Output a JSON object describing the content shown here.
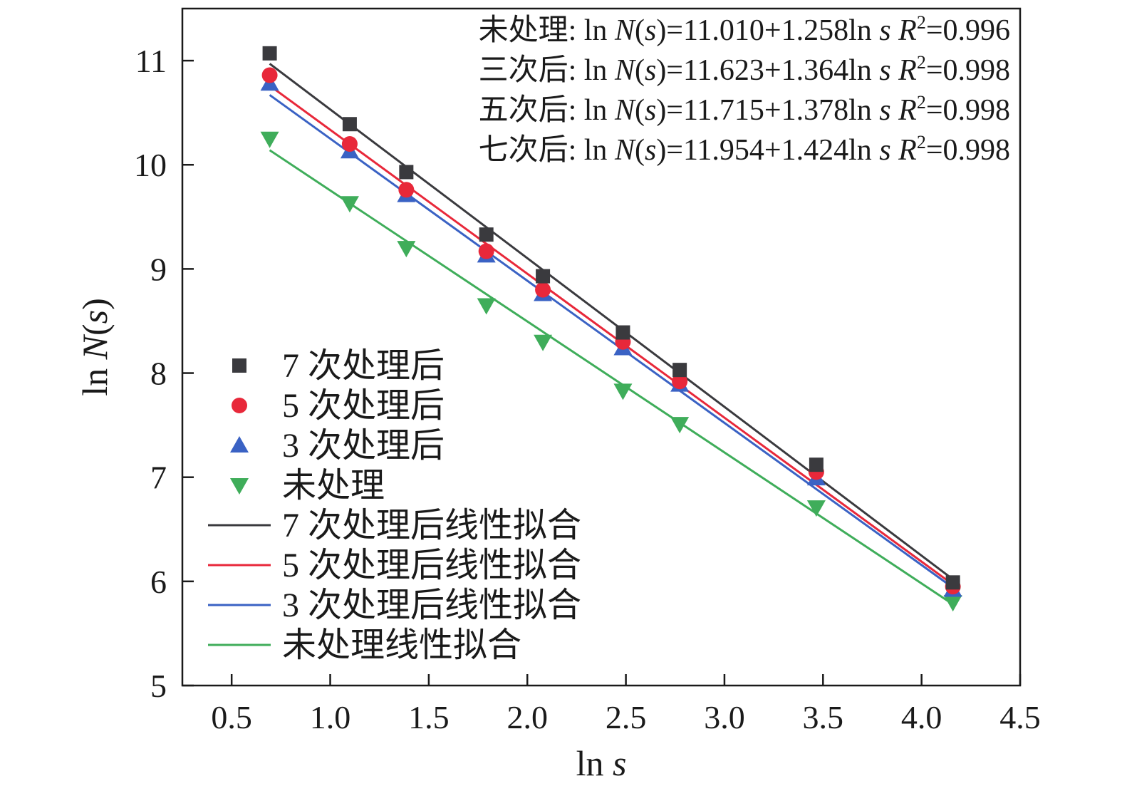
{
  "chart_data": {
    "type": "scatter",
    "title": "",
    "xlabel": {
      "base": "ln ",
      "var": "s"
    },
    "ylabel": {
      "pre": "ln ",
      "var": "N",
      "open": "(",
      "arg": "s",
      "close": ")"
    },
    "xlim": [
      0.25,
      4.5
    ],
    "ylim": [
      5,
      11.5
    ],
    "xticks": [
      0.5,
      1.0,
      1.5,
      2.0,
      2.5,
      3.0,
      3.5,
      4.0,
      4.5
    ],
    "xtick_labels": [
      "0.5",
      "1.0",
      "1.5",
      "2.0",
      "2.5",
      "3.0",
      "3.5",
      "4.0",
      "4.5"
    ],
    "yticks": [
      5,
      6,
      7,
      8,
      9,
      10,
      11
    ],
    "ytick_labels": [
      "5",
      "6",
      "7",
      "8",
      "9",
      "10",
      "11"
    ],
    "grid": false,
    "legend_position": "left-center",
    "x": [
      0.693,
      1.099,
      1.386,
      1.792,
      2.079,
      2.485,
      2.773,
      3.466,
      4.159
    ],
    "series": [
      {
        "key": "s7",
        "name": "7 次处理后",
        "marker": "square",
        "color": "#3a3a3e",
        "values": [
          11.07,
          10.39,
          9.93,
          9.33,
          8.93,
          8.39,
          8.03,
          7.12,
          5.99
        ]
      },
      {
        "key": "s5",
        "name": "5 次处理后",
        "marker": "circle",
        "color": "#e8283a",
        "values": [
          10.86,
          10.2,
          9.76,
          9.17,
          8.8,
          8.3,
          7.92,
          7.05,
          5.95
        ]
      },
      {
        "key": "s3",
        "name": "3 次处理后",
        "marker": "triangle-up",
        "color": "#3a62c4",
        "values": [
          10.78,
          10.13,
          9.71,
          9.13,
          8.76,
          8.24,
          7.89,
          6.99,
          5.92
        ]
      },
      {
        "key": "s0",
        "name": "未处理",
        "marker": "triangle-down",
        "color": "#3fad5a",
        "values": [
          10.25,
          9.63,
          9.2,
          8.65,
          8.3,
          7.83,
          7.51,
          6.71,
          5.8
        ]
      }
    ],
    "fits": [
      {
        "key": "f7",
        "name": "7 次处理后线性拟合",
        "color": "#3a3a3e",
        "x_range": [
          0.693,
          4.159
        ],
        "y_range": [
          10.97,
          6.02
        ]
      },
      {
        "key": "f5",
        "name": "5 次处理后线性拟合",
        "color": "#e8283a",
        "x_range": [
          0.693,
          4.159
        ],
        "y_range": [
          10.76,
          5.97
        ]
      },
      {
        "key": "f3",
        "name": "3 次处理后线性拟合",
        "color": "#3a62c4",
        "x_range": [
          0.693,
          4.159
        ],
        "y_range": [
          10.67,
          5.94
        ]
      },
      {
        "key": "f0",
        "name": "未处理线性拟合",
        "color": "#3fad5a",
        "x_range": [
          0.693,
          4.159
        ],
        "y_range": [
          10.14,
          5.78
        ]
      }
    ],
    "equations": [
      {
        "label": "未处理: ",
        "lhs": "ln ",
        "nvar": "N",
        "svar": "s",
        "rhs": ")=11.010+1.258ln ",
        "r2pre": " R",
        "r2sup": "2",
        "r2val": "=0.996"
      },
      {
        "label": "三次后: ",
        "lhs": "ln ",
        "nvar": "N",
        "svar": "s",
        "rhs": ")=11.623+1.364ln ",
        "r2pre": " R",
        "r2sup": "2",
        "r2val": "=0.998"
      },
      {
        "label": "五次后: ",
        "lhs": "ln ",
        "nvar": "N",
        "svar": "s",
        "rhs": ")=11.715+1.378ln ",
        "r2pre": " R",
        "r2sup": "2",
        "r2val": "=0.998"
      },
      {
        "label": "七次后: ",
        "lhs": "ln ",
        "nvar": "N",
        "svar": "s",
        "rhs": ")=11.954+1.424ln ",
        "r2pre": " R",
        "r2sup": "2",
        "r2val": "=0.998"
      }
    ]
  }
}
